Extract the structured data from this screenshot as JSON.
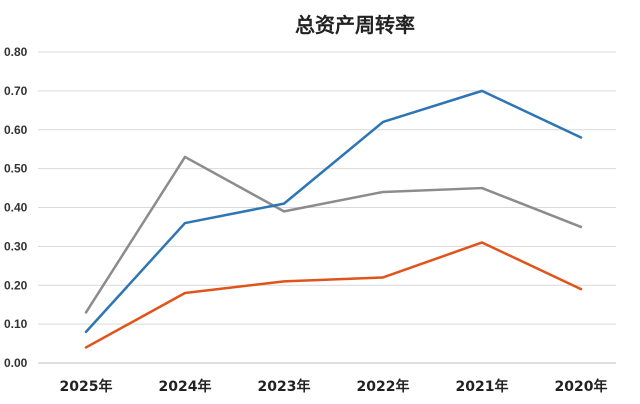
{
  "chart_data": {
    "type": "line",
    "title": "总资产周转率",
    "categories": [
      "2025年",
      "2024年",
      "2023年",
      "2022年",
      "2021年",
      "2020年"
    ],
    "y_ticks": [
      "0.00",
      "0.10",
      "0.20",
      "0.30",
      "0.40",
      "0.50",
      "0.60",
      "0.70",
      "0.80"
    ],
    "ylim": [
      0,
      0.8
    ],
    "grid": true,
    "series": [
      {
        "color": "#2e75b6",
        "values": [
          0.08,
          0.36,
          0.41,
          0.62,
          0.7,
          0.58
        ]
      },
      {
        "color": "#e0531a",
        "values": [
          0.04,
          0.18,
          0.21,
          0.22,
          0.31,
          0.19
        ]
      },
      {
        "color": "#8c8c8c",
        "values": [
          0.13,
          0.53,
          0.39,
          0.44,
          0.45,
          0.35
        ]
      }
    ]
  }
}
